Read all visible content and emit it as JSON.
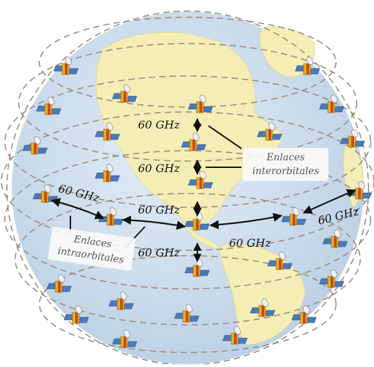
{
  "labels": {
    "ghz_1": "60 GHz",
    "ghz_2": "60 GHz",
    "ghz_3": "60 GHz",
    "ghz_4": "60 GHz",
    "ghz_left": "60 GHz",
    "ghz_right": "60 GHz",
    "ghz_bottom": "60 GHz"
  },
  "boxes": {
    "inter_line1": "Enlaces",
    "inter_line2": "interorbitales",
    "intra_line1": "Enlaces",
    "intra_line2": "intraorbitales"
  },
  "colors": {
    "ocean": "#cfe0ef",
    "land": "#f4eeb6",
    "orbit": "#9a8a7a",
    "satellite_body": "#e8b020",
    "satellite_panel": "#4a7ab8",
    "arrow": "#111111"
  },
  "icons": {
    "satellite": "satellite-icon"
  }
}
